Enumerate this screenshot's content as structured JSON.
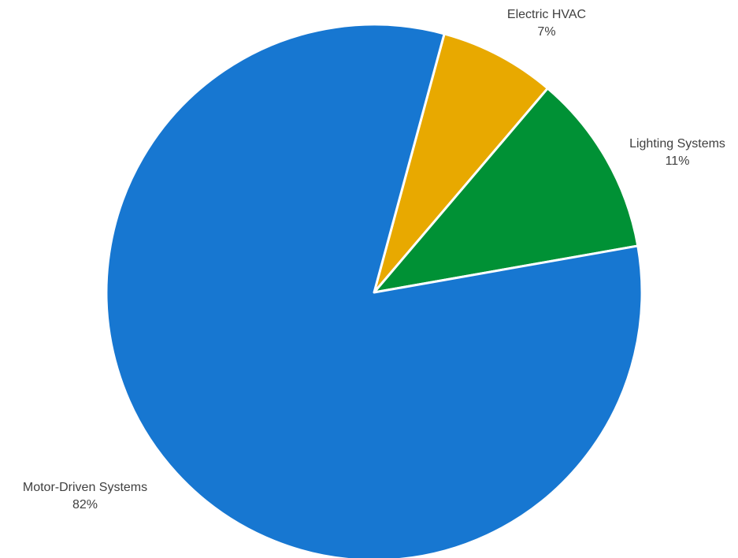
{
  "chart_data": {
    "type": "pie",
    "title": "",
    "slices": [
      {
        "label": "Electric HVAC",
        "value": 7,
        "percent_label": "7%",
        "color": "#E8A900"
      },
      {
        "label": "Lighting Systems",
        "value": 11,
        "percent_label": "11%",
        "color": "#009135"
      },
      {
        "label": "Motor-Driven Systems",
        "value": 82,
        "percent_label": "82%",
        "color": "#1777D1"
      }
    ],
    "legend": "none",
    "data_labels": "outside",
    "start_direction": "clockwise from 12 o'clock, first slice Electric HVAC"
  }
}
